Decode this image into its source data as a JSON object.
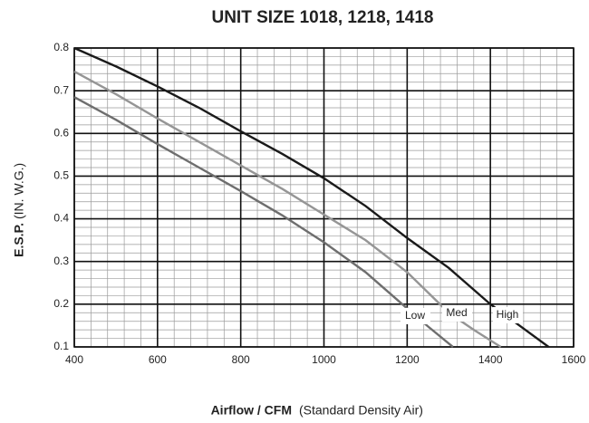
{
  "chart_data": {
    "type": "line",
    "title": "UNIT SIZE 1018, 1218, 1418",
    "y_label": "E.S.P.",
    "y_label_note": "(IN. W.G.)",
    "x_label": "Airflow / CFM",
    "x_label_note": "(Standard Density Air)",
    "xlim": [
      400,
      1600
    ],
    "xticks": [
      400,
      600,
      800,
      1000,
      1200,
      1400,
      1600
    ],
    "ylim": [
      0.1,
      0.8
    ],
    "yticks": [
      0.1,
      0.2,
      0.3,
      0.4,
      0.5,
      0.6,
      0.7,
      0.8
    ],
    "grid": true,
    "minor_grid": {
      "x": 40,
      "y": 0.02
    },
    "series": [
      {
        "name": "Low",
        "color": "#6e6e6e",
        "x": [
          400,
          500,
          600,
          700,
          800,
          900,
          1000,
          1100,
          1200,
          1250,
          1310
        ],
        "values": [
          0.685,
          0.632,
          0.575,
          0.52,
          0.465,
          0.408,
          0.345,
          0.275,
          0.19,
          0.148,
          0.1
        ]
      },
      {
        "name": "Med",
        "color": "#959595",
        "x": [
          400,
          500,
          600,
          700,
          800,
          900,
          1000,
          1100,
          1200,
          1300,
          1360,
          1425
        ],
        "values": [
          0.745,
          0.692,
          0.635,
          0.58,
          0.525,
          0.47,
          0.41,
          0.35,
          0.275,
          0.18,
          0.14,
          0.1
        ]
      },
      {
        "name": "High",
        "color": "#1a1a1a",
        "x": [
          400,
          500,
          600,
          700,
          800,
          900,
          1000,
          1100,
          1200,
          1300,
          1400,
          1470,
          1540
        ],
        "values": [
          0.8,
          0.757,
          0.71,
          0.66,
          0.605,
          0.552,
          0.495,
          0.43,
          0.355,
          0.285,
          0.2,
          0.15,
          0.1
        ]
      }
    ]
  }
}
